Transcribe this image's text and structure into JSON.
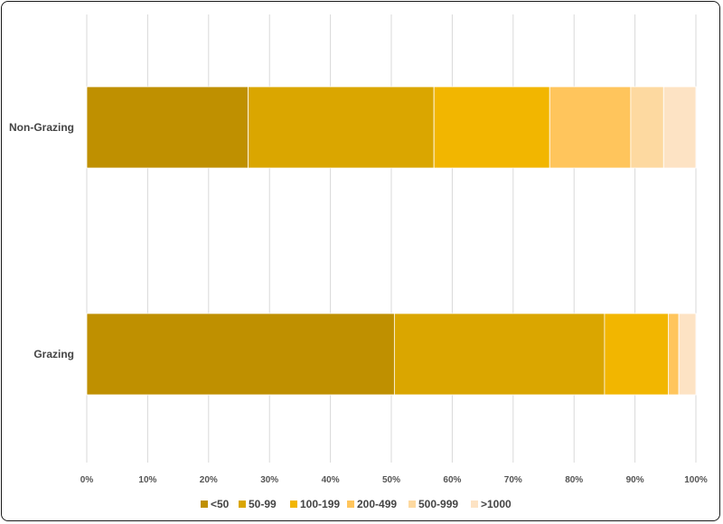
{
  "chart_data": {
    "type": "bar",
    "orientation": "horizontal",
    "stacked": "percent",
    "title": "",
    "xlabel": "",
    "ylabel": "",
    "categories": [
      "Non-Grazing",
      "Grazing"
    ],
    "series": [
      {
        "name": "<50",
        "values": [
          26.5,
          50.5
        ],
        "color": "#BF9000"
      },
      {
        "name": "50-99",
        "values": [
          30.5,
          34.5
        ],
        "color": "#DAA600"
      },
      {
        "name": "100-199",
        "values": [
          19.0,
          10.5
        ],
        "color": "#F2B600"
      },
      {
        "name": "200-499",
        "values": [
          13.3,
          1.7
        ],
        "color": "#FFC55C"
      },
      {
        "name": "500-999",
        "values": [
          5.4,
          0.0
        ],
        "color": "#FDD9A0"
      },
      {
        "name": ">1000",
        "values": [
          5.3,
          2.8
        ],
        "color": "#FDE3C4"
      }
    ],
    "xlim": [
      0,
      100
    ],
    "x_ticks": [
      "0%",
      "10%",
      "20%",
      "30%",
      "40%",
      "50%",
      "60%",
      "70%",
      "80%",
      "90%",
      "100%"
    ],
    "grid": "vertical",
    "legend_position": "bottom"
  }
}
